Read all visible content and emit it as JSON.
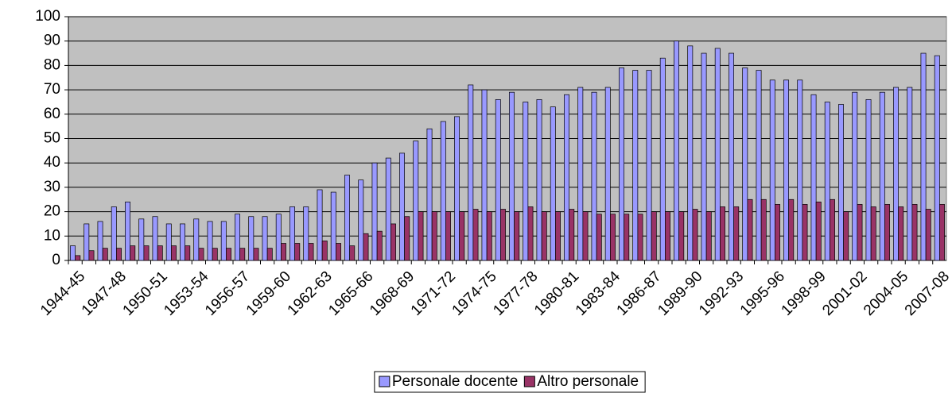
{
  "chart_data": {
    "type": "bar",
    "categories": [
      "1944-45",
      null,
      null,
      "1947-48",
      null,
      null,
      "1950-51",
      null,
      null,
      "1953-54",
      null,
      null,
      "1956-57",
      null,
      null,
      "1959-60",
      null,
      null,
      "1962-63",
      null,
      null,
      "1965-66",
      null,
      null,
      "1968-69",
      null,
      null,
      "1971-72",
      null,
      null,
      "1974-75",
      null,
      null,
      "1977-78",
      null,
      null,
      "1980-81",
      null,
      null,
      "1983-84",
      null,
      null,
      "1986-87",
      null,
      null,
      "1989-90",
      null,
      null,
      "1992-93",
      null,
      null,
      "1995-96",
      null,
      null,
      "1998-99",
      null,
      null,
      "2001-02",
      null,
      null,
      "2004-05",
      null,
      null,
      "2007-08"
    ],
    "series": [
      {
        "name": "Personale docente",
        "color": "#9999ff",
        "values": [
          6,
          15,
          16,
          22,
          24,
          17,
          18,
          15,
          15,
          17,
          16,
          16,
          19,
          18,
          18,
          19,
          22,
          22,
          29,
          28,
          35,
          33,
          40,
          42,
          44,
          49,
          54,
          57,
          59,
          72,
          70,
          66,
          69,
          65,
          66,
          63,
          68,
          71,
          69,
          71,
          79,
          78,
          78,
          83,
          90,
          88,
          85,
          87,
          85,
          79,
          78,
          74,
          74,
          74,
          68,
          65,
          64,
          69,
          66,
          69,
          71,
          71,
          85,
          84
        ]
      },
      {
        "name": "Altro personale",
        "color": "#993366",
        "values": [
          2,
          4,
          5,
          5,
          6,
          6,
          6,
          6,
          6,
          5,
          5,
          5,
          5,
          5,
          5,
          7,
          7,
          7,
          8,
          7,
          6,
          11,
          12,
          15,
          18,
          20,
          20,
          20,
          20,
          21,
          20,
          21,
          20,
          22,
          20,
          20,
          21,
          20,
          19,
          19,
          19,
          19,
          20,
          20,
          20,
          21,
          20,
          22,
          22,
          25,
          25,
          23,
          25,
          23,
          24,
          25,
          20,
          23,
          22,
          23,
          22,
          23,
          21,
          23
        ]
      }
    ],
    "ylim": [
      0,
      100
    ],
    "yticks": [
      0,
      10,
      20,
      30,
      40,
      50,
      60,
      70,
      80,
      90,
      100
    ],
    "grid": true,
    "legend": "bottom"
  }
}
